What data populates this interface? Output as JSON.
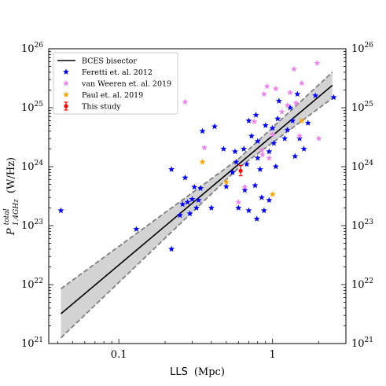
{
  "chart_data": {
    "type": "scatter",
    "title": "",
    "xlabel_main": "LLS",
    "xlabel_unit": "(Mpc)",
    "ylabel_sym": "P",
    "ylabel_sup": "total",
    "ylabel_sub": "1.4GHz",
    "ylabel_unit": "(W/Hz)",
    "xscale": "log",
    "yscale": "log",
    "xlim": [
      0.035,
      3.0
    ],
    "ylim": [
      1e+21,
      1e+26
    ],
    "x_ticks": [
      {
        "value": 0.1,
        "label": "0.1"
      },
      {
        "value": 1,
        "label": "1"
      }
    ],
    "y_ticks": [
      {
        "value": 1e+21,
        "mant": "10",
        "exp": "21"
      },
      {
        "value": 1e+22,
        "mant": "10",
        "exp": "22"
      },
      {
        "value": 1e+23,
        "mant": "10",
        "exp": "23"
      },
      {
        "value": 1e+24,
        "mant": "10",
        "exp": "24"
      },
      {
        "value": 1e+25,
        "mant": "10",
        "exp": "25"
      },
      {
        "value": 1e+26,
        "mant": "10",
        "exp": "26"
      }
    ],
    "legend_position": "top-left",
    "fit": {
      "name": "BCES bisector",
      "color": "#000000",
      "x": [
        0.042,
        2.45
      ],
      "y": [
        3.2e+21,
        2.4e+25
      ],
      "band_upper": [
        8.5e+21,
        4e+25
      ],
      "band_lower": [
        1.25e+21,
        1.45e+25
      ],
      "band_mid_x": 0.6,
      "band_mid_upper": 1.35e+24,
      "band_mid_lower": 9.5e+23,
      "band_color": "#d3d3d3",
      "band_edge_color": "#808080"
    },
    "series": [
      {
        "name": "Feretti et. al. 2012",
        "marker": "star",
        "color": "#0000ff",
        "points": [
          [
            0.042,
            1.8e+23
          ],
          [
            0.13,
            8.7e+22
          ],
          [
            0.22,
            9e+23
          ],
          [
            0.22,
            4e+22
          ],
          [
            0.25,
            1.5e+23
          ],
          [
            0.26,
            2.3e+23
          ],
          [
            0.27,
            6.5e+23
          ],
          [
            0.28,
            2.5e+23
          ],
          [
            0.29,
            1.6e+23
          ],
          [
            0.3,
            2.8e+23
          ],
          [
            0.31,
            4.5e+23
          ],
          [
            0.32,
            2e+23
          ],
          [
            0.33,
            2.7e+23
          ],
          [
            0.34,
            4.3e+23
          ],
          [
            0.35,
            4e+24
          ],
          [
            0.4,
            2e+23
          ],
          [
            0.42,
            4.8e+24
          ],
          [
            0.48,
            2e+24
          ],
          [
            0.5,
            4.6e+23
          ],
          [
            0.55,
            8e+23
          ],
          [
            0.57,
            1.8e+24
          ],
          [
            0.58,
            1.2e+24
          ],
          [
            0.6,
            2e+23
          ],
          [
            0.65,
            2e+24
          ],
          [
            0.66,
            4e+23
          ],
          [
            0.68,
            1.1e+24
          ],
          [
            0.7,
            1.8e+23
          ],
          [
            0.7,
            6e+24
          ],
          [
            0.73,
            3.3e+24
          ],
          [
            0.77,
            4.8e+23
          ],
          [
            0.78,
            7.5e+24
          ],
          [
            0.79,
            1.3e+23
          ],
          [
            0.8,
            2.7e+24
          ],
          [
            0.8,
            1.4e+24
          ],
          [
            0.83,
            9e+23
          ],
          [
            0.85,
            3e+23
          ],
          [
            0.88,
            1.8e+23
          ],
          [
            0.9,
            5e+24
          ],
          [
            0.95,
            2.7e+23
          ],
          [
            0.95,
            1.8e+24
          ],
          [
            1.0,
            4.5e+24
          ],
          [
            1.02,
            2.5e+24
          ],
          [
            1.05,
            1e+24
          ],
          [
            1.08,
            6.5e+24
          ],
          [
            1.1,
            1.3e+25
          ],
          [
            1.2,
            3e+24
          ],
          [
            1.25,
            4.2e+24
          ],
          [
            1.3,
            1e+25
          ],
          [
            1.35,
            6e+24
          ],
          [
            1.4,
            1.5e+24
          ],
          [
            1.45,
            1.7e+25
          ],
          [
            1.5,
            3e+24
          ],
          [
            1.6,
            2e+24
          ],
          [
            1.7,
            5.5e+24
          ],
          [
            1.9,
            1.6e+25
          ],
          [
            2.5,
            1.5e+25
          ]
        ]
      },
      {
        "name": "van Weeren et. al. 2019",
        "marker": "star",
        "color": "#ee82ee",
        "points": [
          [
            0.27,
            1.25e+25
          ],
          [
            0.36,
            2.1e+24
          ],
          [
            0.6,
            2.5e+23
          ],
          [
            0.66,
            4.5e+23
          ],
          [
            0.76,
            5.8e+24
          ],
          [
            0.85,
            1.9e+24
          ],
          [
            0.86,
            1.6e+24
          ],
          [
            0.88,
            1.7e+25
          ],
          [
            0.92,
            2.3e+25
          ],
          [
            0.95,
            1.4e+24
          ],
          [
            1.0,
            3.5e+24
          ],
          [
            1.05,
            2.1e+25
          ],
          [
            1.15,
            8.5e+24
          ],
          [
            1.25,
            1.1e+25
          ],
          [
            1.3,
            1.8e+25
          ],
          [
            1.38,
            4.5e+25
          ],
          [
            1.42,
            1.2e+25
          ],
          [
            1.5,
            3.3e+24
          ],
          [
            1.55,
            2.6e+25
          ],
          [
            1.95,
            5.7e+25
          ],
          [
            2.0,
            3e+24
          ]
        ]
      },
      {
        "name": "Paul et. al. 2019",
        "marker": "star",
        "color": "#ffa500",
        "points": [
          [
            0.35,
            1.2e+24
          ],
          [
            0.5,
            5.5e+23
          ],
          [
            1.0,
            3.4e+23
          ],
          [
            1.55,
            6e+24
          ]
        ]
      },
      {
        "name": "This study",
        "marker": "errorbar",
        "color": "#ff0000",
        "points": [
          [
            0.62,
            8.5e+23
          ]
        ],
        "yerr_upper": 1.05e+24,
        "yerr_lower": 7e+23
      }
    ]
  }
}
